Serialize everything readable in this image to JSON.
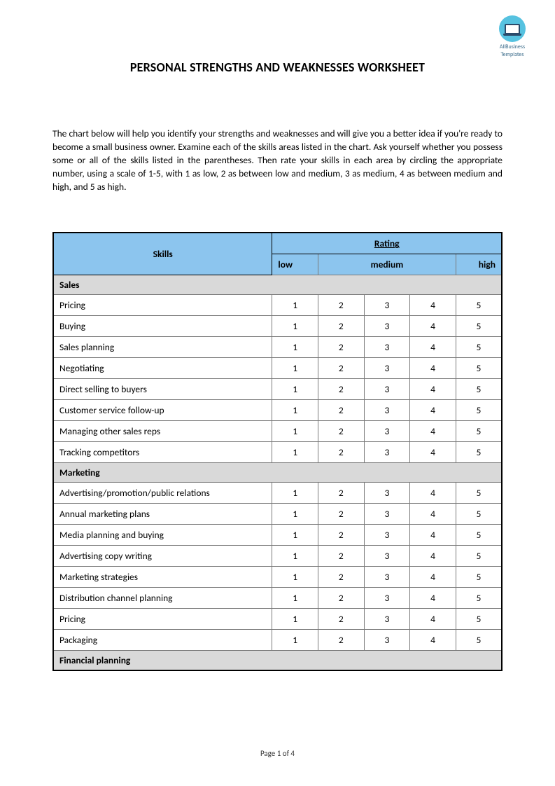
{
  "logo": {
    "line1": "AllBusiness",
    "line2": "Templates"
  },
  "title": "PERSONAL STRENGTHS AND WEAKNESSES WORKSHEET",
  "intro": "The chart below will help you identify your strengths and weaknesses and will give you a better idea if you're ready to become a small business owner. Examine each of the skills areas listed in the chart. Ask yourself whether you possess some or all of the skills listed in the parentheses. Then rate your skills in each area by circling the appropriate number, using a scale of 1-5, with 1 as low, 2 as between low and medium, 3 as medium, 4 as between medium and high, and 5 as high.",
  "table": {
    "header_skills": "Skills",
    "header_rating": "Rating",
    "scale_labels": {
      "low": "low",
      "medium": "medium",
      "high": "high"
    },
    "rating_values": [
      "1",
      "2",
      "3",
      "4",
      "5"
    ],
    "header_bg": "#8cc5ee",
    "section_bg": "#d9d9d9",
    "border_color": "#000000",
    "sections": [
      {
        "name": "Sales",
        "skills": [
          "Pricing",
          "Buying",
          "Sales planning",
          "Negotiating",
          "Direct selling to buyers",
          "Customer service follow-up",
          "Managing other sales reps",
          "Tracking competitors"
        ]
      },
      {
        "name": "Marketing",
        "skills": [
          "Advertising/promotion/public relations",
          "Annual marketing plans",
          "Media planning and buying",
          "Advertising copy writing",
          "Marketing strategies",
          "Distribution channel planning",
          "Pricing",
          "Packaging"
        ]
      },
      {
        "name": "Financial planning",
        "skills": []
      }
    ]
  },
  "footer": "Page 1 of 4"
}
